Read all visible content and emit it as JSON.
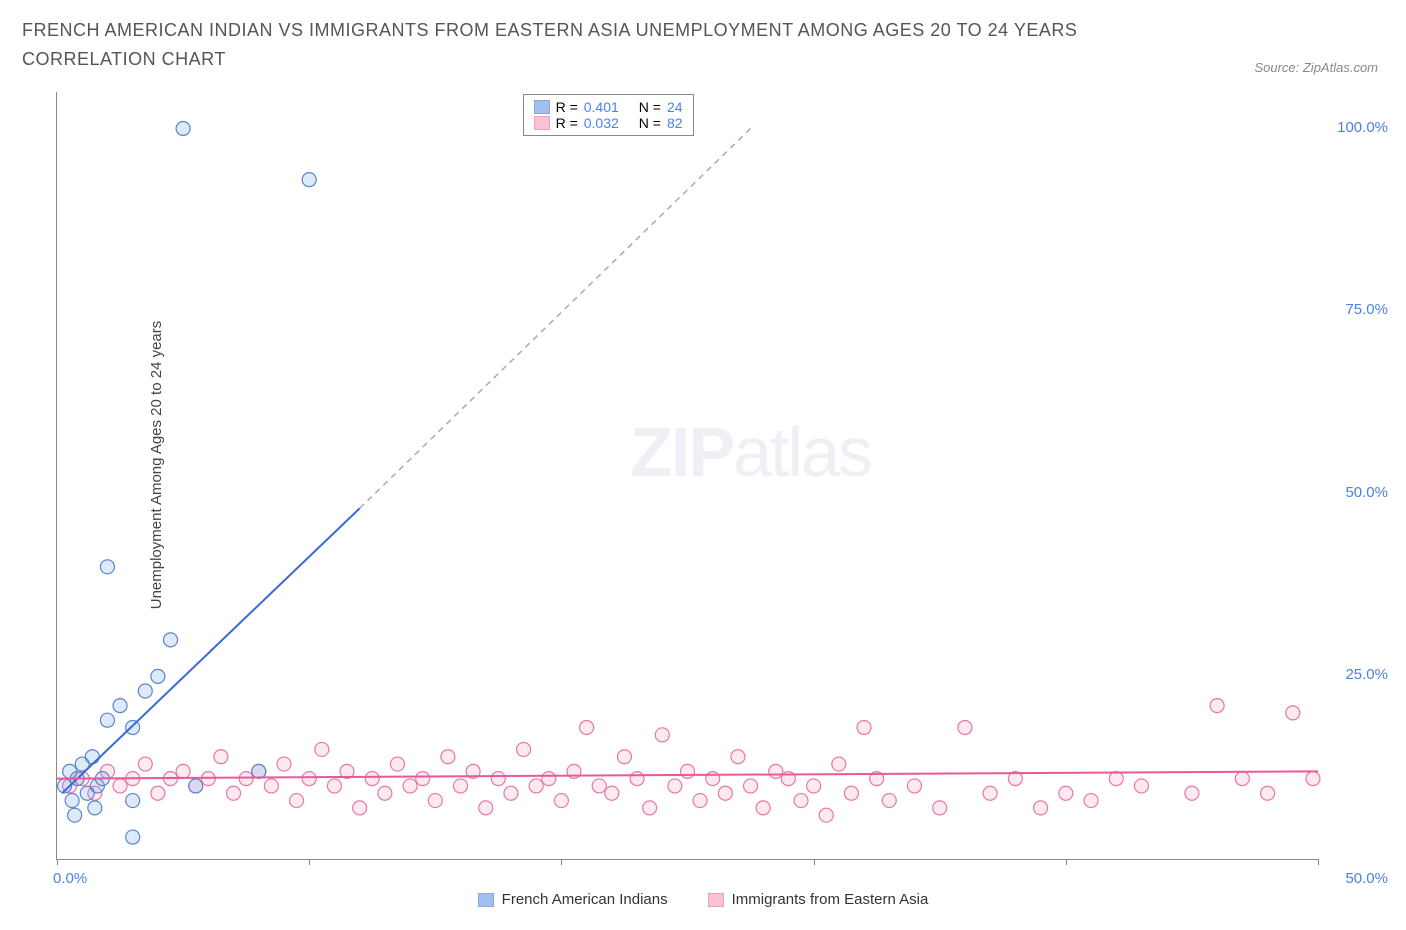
{
  "title": "FRENCH AMERICAN INDIAN VS IMMIGRANTS FROM EASTERN ASIA UNEMPLOYMENT AMONG AGES 20 TO 24 YEARS CORRELATION CHART",
  "source": "Source: ZipAtlas.com",
  "ylabel": "Unemployment Among Ages 20 to 24 years",
  "watermark": {
    "bold": "ZIP",
    "light": "atlas"
  },
  "chart": {
    "type": "scatter",
    "xlim": [
      0,
      50
    ],
    "ylim": [
      0,
      105
    ],
    "xtick_step": 10,
    "ytick_step": 25,
    "xtick_labels": {
      "0": "0.0%",
      "50": "50.0%"
    },
    "ytick_labels": {
      "25": "25.0%",
      "50": "50.0%",
      "75": "75.0%",
      "100": "100.0%"
    },
    "background_color": "#ffffff",
    "axis_color": "#888888",
    "marker_radius": 7,
    "marker_stroke_width": 1.2,
    "marker_fill_opacity": 0.25,
    "series": {
      "a": {
        "label": "French American Indians",
        "color": "#7aa6e8",
        "stroke": "#5a86c8",
        "R": "0.401",
        "N": "24",
        "trend": {
          "solid": {
            "x1": 0.2,
            "y1": 9,
            "x2": 12,
            "y2": 48
          },
          "dashed": {
            "x1": 12,
            "y1": 48,
            "x2": 27.5,
            "y2": 100
          },
          "line_color": "#3b68d8",
          "dash_color": "#aaaaaa",
          "width": 2
        },
        "points": [
          [
            0.3,
            10
          ],
          [
            0.5,
            12
          ],
          [
            0.6,
            8
          ],
          [
            0.8,
            11
          ],
          [
            1.0,
            13
          ],
          [
            1.2,
            9
          ],
          [
            1.4,
            14
          ],
          [
            1.6,
            10
          ],
          [
            2.0,
            19
          ],
          [
            2.5,
            21
          ],
          [
            3.0,
            18
          ],
          [
            3.5,
            23
          ],
          [
            3.0,
            8
          ],
          [
            4.5,
            30
          ],
          [
            5.5,
            10
          ],
          [
            2.0,
            40
          ],
          [
            5.0,
            100
          ],
          [
            3.0,
            3
          ],
          [
            10.0,
            93
          ],
          [
            8.0,
            12
          ],
          [
            1.5,
            7
          ],
          [
            0.7,
            6
          ],
          [
            1.8,
            11
          ],
          [
            4.0,
            25
          ]
        ]
      },
      "b": {
        "label": "Immigrants from Eastern Asia",
        "color": "#f7a8c4",
        "stroke": "#e878a4",
        "R": "0.032",
        "N": "82",
        "trend": {
          "solid": {
            "x1": 0,
            "y1": 11,
            "x2": 50,
            "y2": 12
          },
          "line_color": "#e8589a",
          "width": 2
        },
        "points": [
          [
            0.5,
            10
          ],
          [
            1,
            11
          ],
          [
            1.5,
            9
          ],
          [
            2,
            12
          ],
          [
            2.5,
            10
          ],
          [
            3,
            11
          ],
          [
            3.5,
            13
          ],
          [
            4,
            9
          ],
          [
            4.5,
            11
          ],
          [
            5,
            12
          ],
          [
            5.5,
            10
          ],
          [
            6,
            11
          ],
          [
            6.5,
            14
          ],
          [
            7,
            9
          ],
          [
            7.5,
            11
          ],
          [
            8,
            12
          ],
          [
            8.5,
            10
          ],
          [
            9,
            13
          ],
          [
            9.5,
            8
          ],
          [
            10,
            11
          ],
          [
            10.5,
            15
          ],
          [
            11,
            10
          ],
          [
            11.5,
            12
          ],
          [
            12,
            7
          ],
          [
            12.5,
            11
          ],
          [
            13,
            9
          ],
          [
            13.5,
            13
          ],
          [
            14,
            10
          ],
          [
            14.5,
            11
          ],
          [
            15,
            8
          ],
          [
            15.5,
            14
          ],
          [
            16,
            10
          ],
          [
            16.5,
            12
          ],
          [
            17,
            7
          ],
          [
            17.5,
            11
          ],
          [
            18,
            9
          ],
          [
            18.5,
            15
          ],
          [
            19,
            10
          ],
          [
            19.5,
            11
          ],
          [
            20,
            8
          ],
          [
            20.5,
            12
          ],
          [
            21,
            18
          ],
          [
            21.5,
            10
          ],
          [
            22,
            9
          ],
          [
            22.5,
            14
          ],
          [
            23,
            11
          ],
          [
            23.5,
            7
          ],
          [
            24,
            17
          ],
          [
            24.5,
            10
          ],
          [
            25,
            12
          ],
          [
            25.5,
            8
          ],
          [
            26,
            11
          ],
          [
            26.5,
            9
          ],
          [
            27,
            14
          ],
          [
            27.5,
            10
          ],
          [
            28,
            7
          ],
          [
            28.5,
            12
          ],
          [
            29,
            11
          ],
          [
            29.5,
            8
          ],
          [
            30,
            10
          ],
          [
            30.5,
            6
          ],
          [
            31,
            13
          ],
          [
            31.5,
            9
          ],
          [
            32,
            18
          ],
          [
            32.5,
            11
          ],
          [
            33,
            8
          ],
          [
            34,
            10
          ],
          [
            35,
            7
          ],
          [
            36,
            18
          ],
          [
            37,
            9
          ],
          [
            38,
            11
          ],
          [
            39,
            7
          ],
          [
            40,
            9
          ],
          [
            41,
            8
          ],
          [
            42,
            11
          ],
          [
            43,
            10
          ],
          [
            45,
            9
          ],
          [
            46,
            21
          ],
          [
            47,
            11
          ],
          [
            48,
            9
          ],
          [
            49,
            20
          ],
          [
            49.8,
            11
          ]
        ]
      }
    }
  },
  "legend_box": {
    "r_label": "R =",
    "n_label": "N =",
    "value_color": "#4b81e8"
  },
  "bottom_legend": [
    {
      "key": "a"
    },
    {
      "key": "b"
    }
  ]
}
